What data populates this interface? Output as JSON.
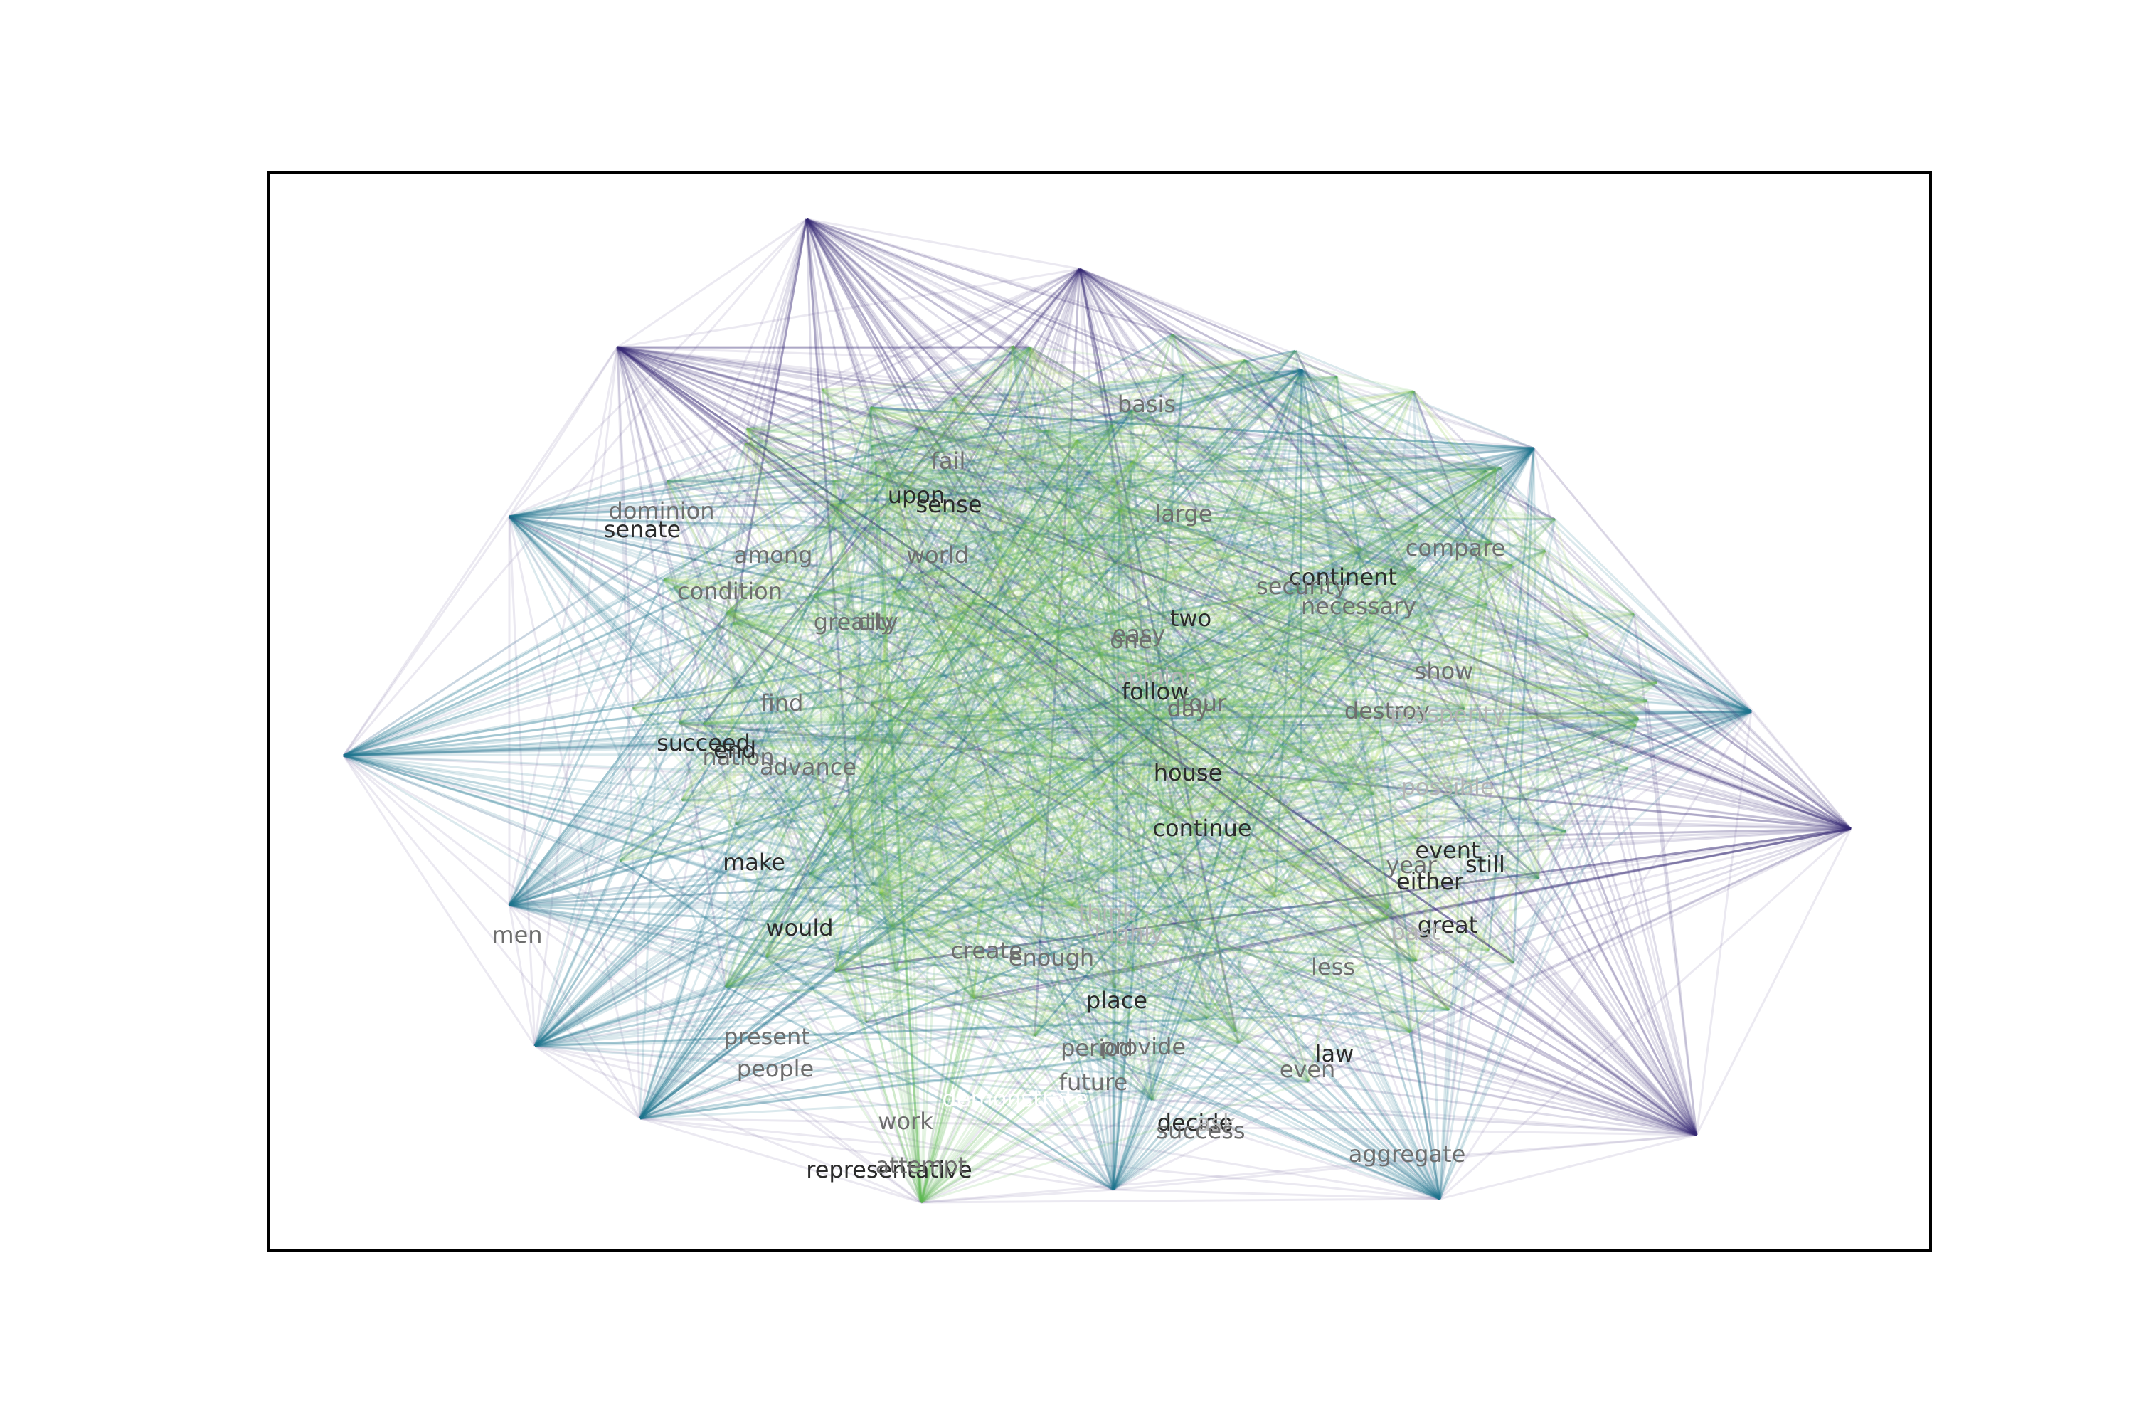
{
  "graph": {
    "description_free": true,
    "palette": {
      "edge_far": "#3b2c77",
      "edge_mid": "#22758e",
      "edge_near": "#5fbd4f",
      "edge_close": "#a6d63a",
      "frame": "#000000",
      "label_dark": "#2b2b2b",
      "label_mid": "#6e6e6e",
      "label_light": "#b3b3b3",
      "label_white": "#ffffff"
    },
    "words": [
      {
        "text": "upon",
        "tone": "dark"
      },
      {
        "text": "sense",
        "tone": "dark"
      },
      {
        "text": "senate",
        "tone": "dark"
      },
      {
        "text": "continent",
        "tone": "dark"
      },
      {
        "text": "two",
        "tone": "dark"
      },
      {
        "text": "opinion",
        "tone": "light"
      },
      {
        "text": "follow",
        "tone": "dark"
      },
      {
        "text": "succeed",
        "tone": "dark"
      },
      {
        "text": "house",
        "tone": "dark"
      },
      {
        "text": "continue",
        "tone": "dark"
      },
      {
        "text": "make",
        "tone": "dark"
      },
      {
        "text": "event",
        "tone": "dark"
      },
      {
        "text": "still",
        "tone": "dark"
      },
      {
        "text": "either",
        "tone": "dark"
      },
      {
        "text": "would",
        "tone": "dark"
      },
      {
        "text": "great",
        "tone": "dark"
      },
      {
        "text": "place",
        "tone": "dark"
      },
      {
        "text": "law",
        "tone": "dark"
      },
      {
        "text": "decide",
        "tone": "dark"
      },
      {
        "text": "representative",
        "tone": "dark"
      },
      {
        "text": "demonstrate",
        "tone": "white"
      },
      {
        "text": "think",
        "tone": "light"
      },
      {
        "text": "highly",
        "tone": "light"
      },
      {
        "text": "fail",
        "tone": "mid"
      },
      {
        "text": "basis",
        "tone": "mid"
      },
      {
        "text": "large",
        "tone": "mid"
      },
      {
        "text": "among",
        "tone": "mid"
      },
      {
        "text": "world",
        "tone": "mid"
      },
      {
        "text": "condition",
        "tone": "mid"
      },
      {
        "text": "greatly",
        "tone": "mid"
      },
      {
        "text": "city",
        "tone": "mid"
      },
      {
        "text": "compare",
        "tone": "mid"
      },
      {
        "text": "necessary",
        "tone": "mid"
      },
      {
        "text": "security",
        "tone": "mid"
      },
      {
        "text": "easy",
        "tone": "mid"
      },
      {
        "text": "one",
        "tone": "mid"
      },
      {
        "text": "show",
        "tone": "mid"
      },
      {
        "text": "destroy",
        "tone": "mid"
      },
      {
        "text": "prosperity",
        "tone": "light"
      },
      {
        "text": "day",
        "tone": "mid"
      },
      {
        "text": "four",
        "tone": "mid"
      },
      {
        "text": "find",
        "tone": "mid"
      },
      {
        "text": "nation",
        "tone": "mid"
      },
      {
        "text": "end",
        "tone": "dark"
      },
      {
        "text": "advance",
        "tone": "mid"
      },
      {
        "text": "possible",
        "tone": "light"
      },
      {
        "text": "year",
        "tone": "mid"
      },
      {
        "text": "men",
        "tone": "mid"
      },
      {
        "text": "create",
        "tone": "mid"
      },
      {
        "text": "enough",
        "tone": "mid"
      },
      {
        "text": "past",
        "tone": "light"
      },
      {
        "text": "less",
        "tone": "mid"
      },
      {
        "text": "present",
        "tone": "mid"
      },
      {
        "text": "people",
        "tone": "mid"
      },
      {
        "text": "period",
        "tone": "mid"
      },
      {
        "text": "provide",
        "tone": "mid"
      },
      {
        "text": "even",
        "tone": "mid"
      },
      {
        "text": "future",
        "tone": "mid"
      },
      {
        "text": "work",
        "tone": "mid"
      },
      {
        "text": "ask",
        "tone": "light"
      },
      {
        "text": "success",
        "tone": "mid"
      },
      {
        "text": "aggregate",
        "tone": "mid"
      },
      {
        "text": "attempt",
        "tone": "mid"
      },
      {
        "text": "dominion",
        "tone": "mid"
      }
    ]
  }
}
